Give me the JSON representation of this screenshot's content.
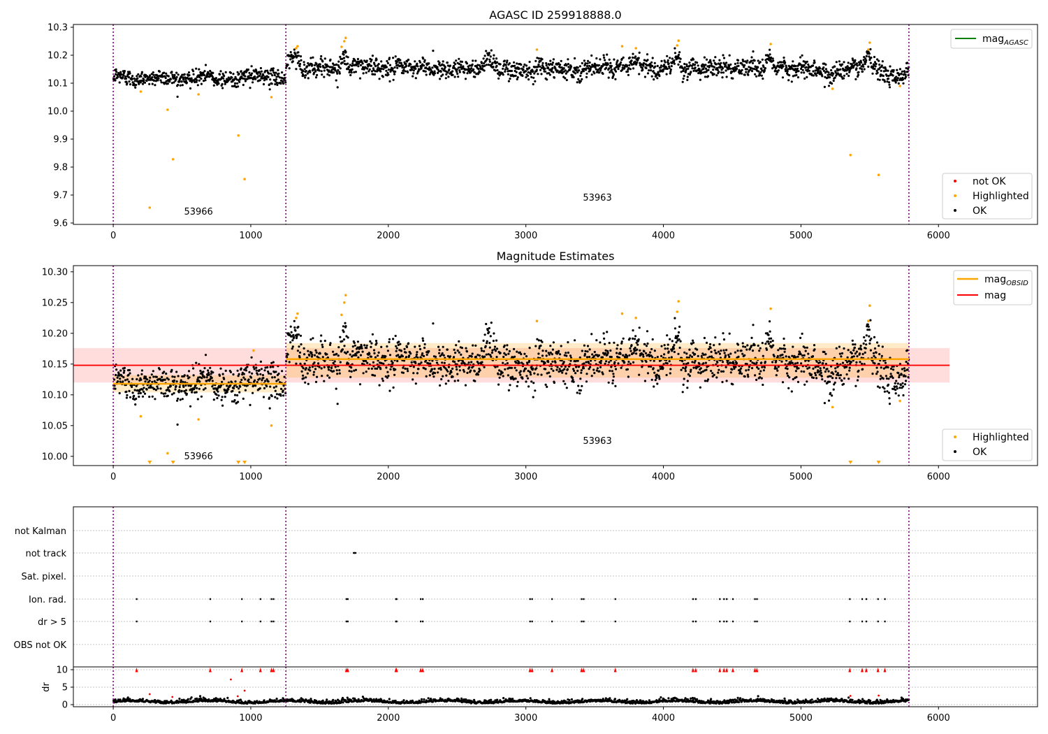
{
  "figure": {
    "title_top": "AGASC ID 259918888.0",
    "title_mid": "Magnitude Estimates"
  },
  "chart_data": [
    {
      "type": "scatter",
      "title": "AGASC ID 259918888.0",
      "xlim": [
        -290,
        6720
      ],
      "ylim": [
        9.595,
        10.31
      ],
      "xticks": [
        0,
        1000,
        2000,
        3000,
        4000,
        5000,
        6000
      ],
      "yticks": [
        9.6,
        9.7,
        9.8,
        9.9,
        10.0,
        10.1,
        10.2,
        10.3
      ],
      "ytick_labels": [
        "9.6",
        "9.7",
        "9.8",
        "9.9",
        "10.0",
        "10.1",
        "10.2",
        "10.3"
      ],
      "obsid_boundaries": [
        0,
        1255,
        5785
      ],
      "obsid_labels": [
        {
          "text": "53966",
          "x": 620,
          "y": 9.63
        },
        {
          "text": "53963",
          "x": 3520,
          "y": 9.68
        }
      ],
      "segments": [
        {
          "x_start": 0,
          "x_end": 1255,
          "center": 10.12,
          "noise": 0.014
        },
        {
          "x_start": 1255,
          "x_end": 5785,
          "center": 10.155,
          "noise": 0.017
        }
      ],
      "highlighted_outliers": [
        {
          "x": 265,
          "y": 9.655
        },
        {
          "x": 395,
          "y": 10.005
        },
        {
          "x": 435,
          "y": 9.828
        },
        {
          "x": 910,
          "y": 9.913
        },
        {
          "x": 955,
          "y": 9.757
        },
        {
          "x": 5360,
          "y": 9.843
        },
        {
          "x": 5565,
          "y": 9.772
        }
      ],
      "legend_upper": [
        "mag_AGASC"
      ],
      "legend_lower": [
        "not OK",
        "Highlighted",
        "OK"
      ],
      "colors": {
        "ok": "#000000",
        "highlighted": "#ffa500",
        "not_ok": "#ff0000",
        "agasc": "#008000"
      },
      "legend_placement": "upper-right and lower-right"
    },
    {
      "type": "scatter",
      "title": "Magnitude Estimates",
      "xlim": [
        -290,
        6720
      ],
      "ylim": [
        9.985,
        10.31
      ],
      "xticks": [
        0,
        1000,
        2000,
        3000,
        4000,
        5000,
        6000
      ],
      "yticks": [
        10.0,
        10.05,
        10.1,
        10.15,
        10.2,
        10.25,
        10.3
      ],
      "ytick_labels": [
        "10.00",
        "10.05",
        "10.10",
        "10.15",
        "10.20",
        "10.25",
        "10.30"
      ],
      "mag": {
        "value": 10.148,
        "band": [
          10.12,
          10.176
        ],
        "x_range": [
          -290,
          6080
        ]
      },
      "mag_obsid": [
        {
          "x_start": 0,
          "x_end": 1255,
          "value": 10.118,
          "band": [
            10.104,
            10.132
          ]
        },
        {
          "x_start": 1255,
          "x_end": 5785,
          "value": 10.158,
          "band": [
            10.128,
            10.184
          ]
        }
      ],
      "obsid_labels": [
        {
          "text": "53966",
          "x": 620,
          "y": 9.995
        },
        {
          "text": "53963",
          "x": 3520,
          "y": 10.02
        }
      ],
      "clipped_markers_x": [
        265,
        435,
        910,
        955,
        5360,
        5565
      ],
      "legend_upper": [
        "mag_OBSID",
        "mag"
      ],
      "legend_lower": [
        "Highlighted",
        "OK"
      ],
      "colors": {
        "mag": "#ff0000",
        "mag_obsid": "#ffa500",
        "band": "#ffb3b3"
      }
    },
    {
      "type": "scatter",
      "title": "",
      "xlim": [
        -290,
        6720
      ],
      "categories": [
        "not Kalman",
        "not track",
        "Sat. pixel.",
        "Ion. rad.",
        "dr > 5",
        "OBS not OK"
      ],
      "not_track_x": [
        1750,
        1760
      ],
      "flag_x": [
        170,
        705,
        935,
        1070,
        1150,
        1165,
        1695,
        1705,
        2055,
        2060,
        2235,
        2250,
        3030,
        3045,
        3190,
        3405,
        3420,
        3650,
        4215,
        4235,
        4410,
        4440,
        4460,
        4505,
        4665,
        4680,
        5355,
        5445,
        5475,
        5560,
        5610
      ],
      "dr_yticks": [
        0,
        5,
        10
      ],
      "dr_ylabel": "dr",
      "dr_outliers": [
        {
          "x": 265,
          "y": 3.0
        },
        {
          "x": 430,
          "y": 2.2
        },
        {
          "x": 855,
          "y": 7.2
        },
        {
          "x": 905,
          "y": 2.4
        },
        {
          "x": 955,
          "y": 4.0
        },
        {
          "x": 5360,
          "y": 2.5
        },
        {
          "x": 5565,
          "y": 2.6
        }
      ]
    }
  ]
}
